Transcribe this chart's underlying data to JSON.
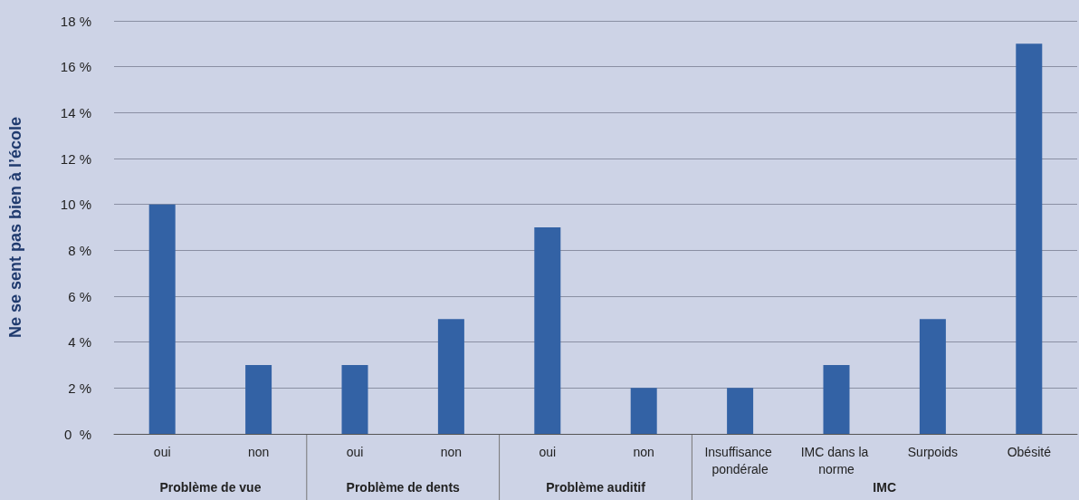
{
  "chart_data": {
    "type": "bar",
    "ylabel": "Ne se sent pas bien à l’école",
    "categories": [
      "oui",
      "non",
      "oui",
      "non",
      "oui",
      "non",
      "Insuffisance pondérale",
      "IMC dans la norme",
      "Surpoids",
      "Obésité"
    ],
    "values": [
      10,
      3,
      3,
      5,
      9,
      2,
      2,
      3,
      5,
      17
    ],
    "color": "#3362a5",
    "ylim": [
      0,
      18
    ],
    "yticks": [
      {
        "value": 0,
        "label": "0  %"
      },
      {
        "value": 2,
        "label": "2 %"
      },
      {
        "value": 4,
        "label": "4 %"
      },
      {
        "value": 6,
        "label": "6 %"
      },
      {
        "value": 8,
        "label": "8 %"
      },
      {
        "value": 10,
        "label": "10 %"
      },
      {
        "value": 12,
        "label": "12 %"
      },
      {
        "value": 14,
        "label": "14 %"
      },
      {
        "value": 16,
        "label": "16 %"
      },
      {
        "value": 18,
        "label": "18 %"
      }
    ],
    "grid": "y",
    "annotations": [
      "Problème de vue",
      "Problème de dents",
      "Problème auditif",
      "IMC"
    ]
  }
}
